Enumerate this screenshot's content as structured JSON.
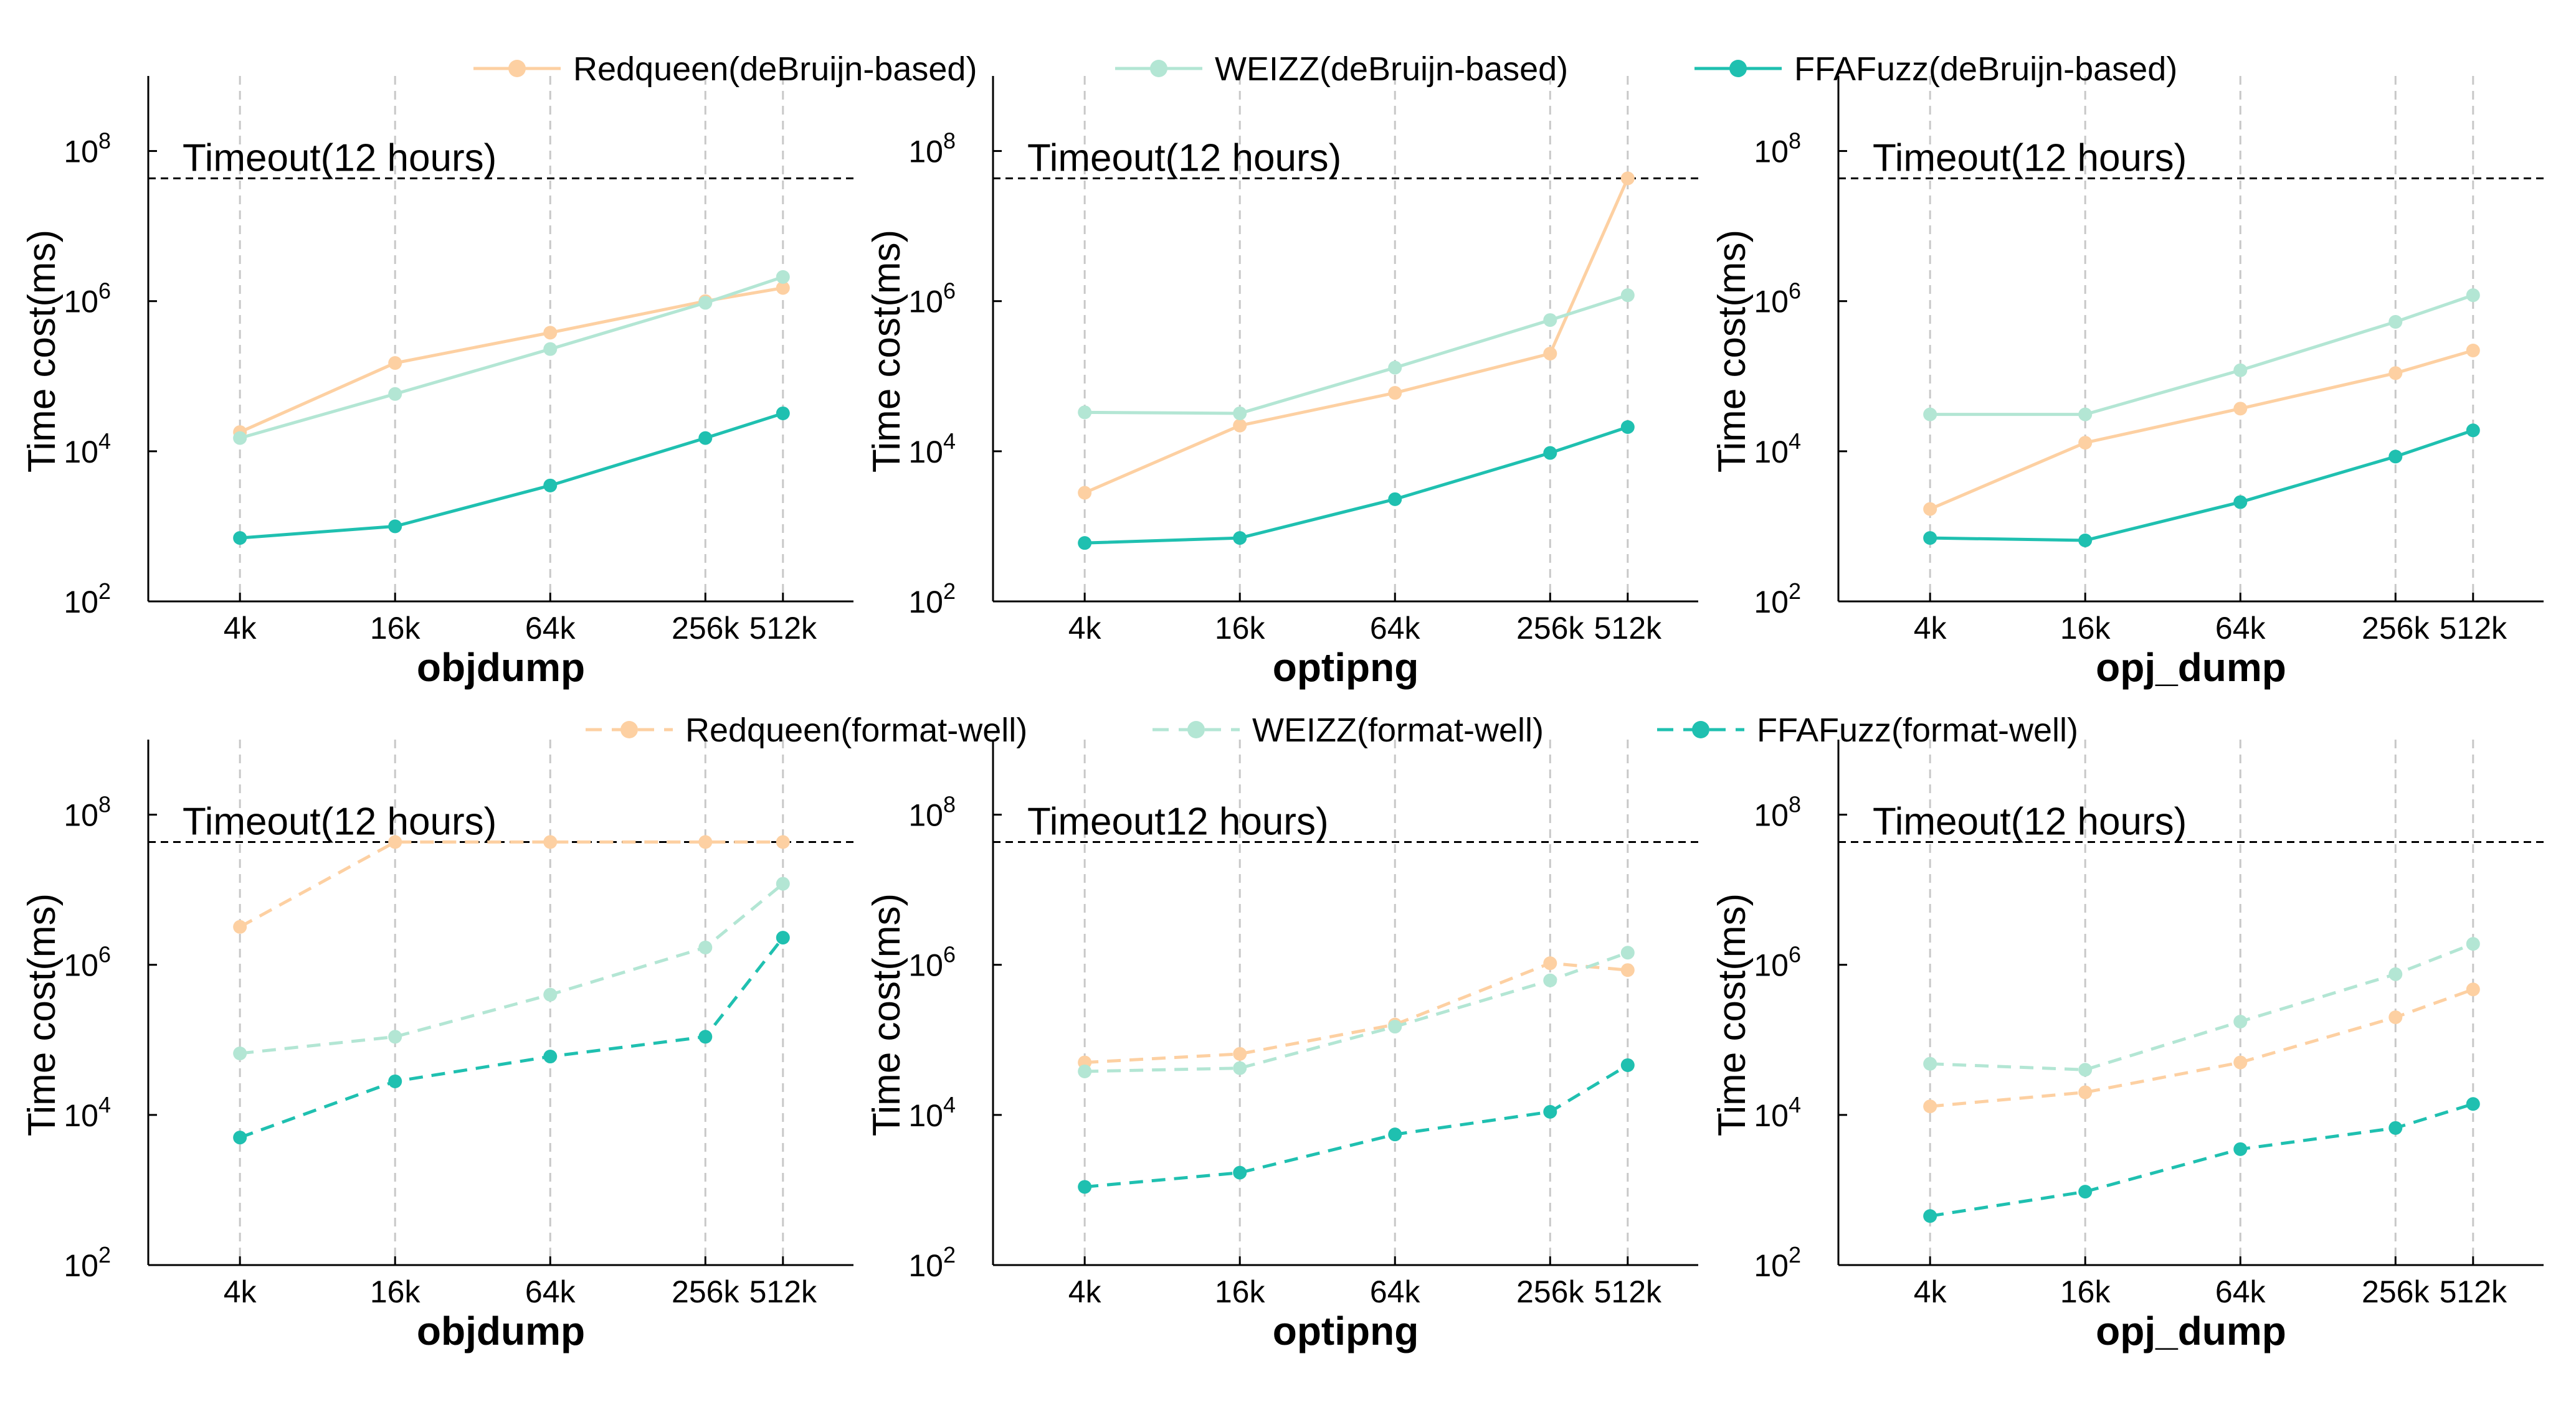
{
  "chart_data": {
    "type": "line",
    "y_scale": "log",
    "ylabel": "Time cost(ms)",
    "x_tick_labels": [
      "4k",
      "16k",
      "64k",
      "256k",
      "512k"
    ],
    "y_tick_labels": [
      {
        "base": "10",
        "exp": "2"
      },
      {
        "base": "10",
        "exp": "4"
      },
      {
        "base": "10",
        "exp": "6"
      },
      {
        "base": "10",
        "exp": "8"
      }
    ],
    "timeout_value": 43200000,
    "colors": {
      "redqueen": "#fdd0a2",
      "weizz": "#b3e6d4",
      "ffafuzz": "#1fc0b0"
    },
    "legends": [
      {
        "items": [
          {
            "label": "Redqueen(deBruijn-based)",
            "key": "redqueen",
            "style": "solid"
          },
          {
            "label": "WEIZZ(deBruijn-based)",
            "key": "weizz",
            "style": "solid"
          },
          {
            "label": "FFAFuzz(deBruijn-based)",
            "key": "ffafuzz",
            "style": "solid"
          }
        ]
      },
      {
        "items": [
          {
            "label": "Redqueen(format-well)",
            "key": "redqueen",
            "style": "dashed"
          },
          {
            "label": "WEIZZ(format-well)",
            "key": "weizz",
            "style": "dashed"
          },
          {
            "label": "FFAFuzz(format-well)",
            "key": "ffafuzz",
            "style": "dashed"
          }
        ]
      }
    ],
    "panels": [
      {
        "title": "objdump",
        "timeout_label": "Timeout(12 hours)",
        "style": "solid",
        "series": [
          {
            "key": "redqueen",
            "values": [
              18000,
              150000,
              380000,
              1000000,
              1500000
            ]
          },
          {
            "key": "weizz",
            "values": [
              15000,
              58000,
              230000,
              950000,
              2100000
            ]
          },
          {
            "key": "ffafuzz",
            "values": [
              700,
              1000,
              3500,
              15000,
              32000
            ]
          }
        ]
      },
      {
        "title": "optipng",
        "timeout_label": "Timeout(12 hours)",
        "style": "solid",
        "series": [
          {
            "key": "redqueen",
            "values": [
              2800,
              22000,
              60000,
              200000,
              43200000
            ]
          },
          {
            "key": "weizz",
            "values": [
              33000,
              32000,
              130000,
              560000,
              1200000
            ]
          },
          {
            "key": "ffafuzz",
            "values": [
              600,
              700,
              2300,
              9500,
              21000
            ]
          }
        ]
      },
      {
        "title": "opj_dump",
        "timeout_label": "Timeout(12 hours)",
        "style": "solid",
        "series": [
          {
            "key": "redqueen",
            "values": [
              1700,
              13000,
              37000,
              110000,
              220000
            ]
          },
          {
            "key": "weizz",
            "values": [
              31000,
              31000,
              120000,
              530000,
              1200000
            ]
          },
          {
            "key": "ffafuzz",
            "values": [
              700,
              650,
              2100,
              8500,
              19000
            ]
          }
        ]
      },
      {
        "title": "objdump",
        "timeout_label": "Timeout(12 hours)",
        "style": "dashed",
        "series": [
          {
            "key": "redqueen",
            "values": [
              3200000,
              43200000,
              43200000,
              43200000,
              43200000
            ]
          },
          {
            "key": "weizz",
            "values": [
              66000,
              110000,
              400000,
              1700000,
              12000000
            ]
          },
          {
            "key": "ffafuzz",
            "values": [
              5000,
              28000,
              60000,
              110000,
              2300000
            ]
          }
        ]
      },
      {
        "title": "optipng",
        "timeout_label": "Timeout12 hours)",
        "style": "dashed",
        "series": [
          {
            "key": "redqueen",
            "values": [
              50000,
              65000,
              160000,
              1050000,
              850000
            ]
          },
          {
            "key": "weizz",
            "values": [
              38000,
              42000,
              150000,
              620000,
              1450000
            ]
          },
          {
            "key": "ffafuzz",
            "values": [
              1100,
              1700,
              5500,
              11000,
              46000
            ]
          }
        ]
      },
      {
        "title": "opj_dump",
        "timeout_label": "Timeout(12 hours)",
        "style": "dashed",
        "series": [
          {
            "key": "redqueen",
            "values": [
              13000,
              20000,
              50000,
              200000,
              470000
            ]
          },
          {
            "key": "weizz",
            "values": [
              48000,
              40000,
              175000,
              750000,
              1900000
            ]
          },
          {
            "key": "ffafuzz",
            "values": [
              450,
              950,
              3500,
              6700,
              14000
            ]
          }
        ]
      }
    ]
  }
}
